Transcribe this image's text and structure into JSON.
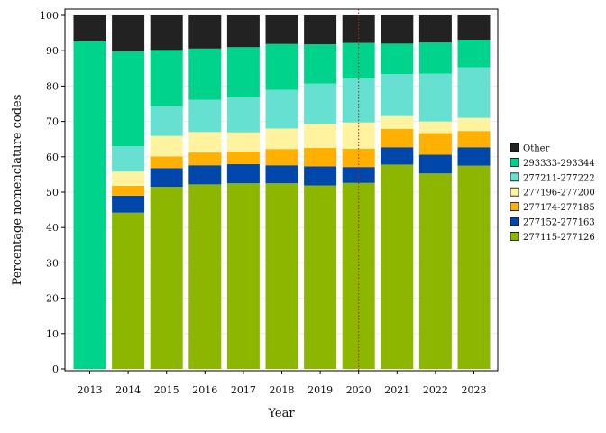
{
  "chart_data": {
    "type": "bar",
    "stacked": true,
    "xlabel": "Year",
    "ylabel": "Percentage nomenclature codes",
    "ylim": [
      0,
      100
    ],
    "yticks": [
      0,
      10,
      20,
      30,
      40,
      50,
      60,
      70,
      80,
      90,
      100
    ],
    "grid": true,
    "legend_position": "right",
    "categories": [
      "2013",
      "2014",
      "2015",
      "2016",
      "2017",
      "2018",
      "2019",
      "2020",
      "2021",
      "2022",
      "2023"
    ],
    "reference_line": {
      "x": "2020",
      "color": "#b22222",
      "style": "dotted"
    },
    "series": [
      {
        "name": "277115-277126",
        "color": "#8db600",
        "values": [
          0,
          44.2,
          51.5,
          52.2,
          52.5,
          52.5,
          51.9,
          52.6,
          57.8,
          55.3,
          57.5
        ]
      },
      {
        "name": "277152-277163",
        "color": "#0047ab",
        "values": [
          0,
          4.8,
          5.3,
          5.4,
          5.4,
          5.1,
          5.4,
          4.5,
          4.9,
          5.3,
          5.2
        ]
      },
      {
        "name": "277174-277185",
        "color": "#ffb000",
        "values": [
          0,
          2.8,
          3.3,
          3.6,
          3.6,
          4.6,
          5.2,
          5.2,
          5.2,
          6.1,
          4.6
        ]
      },
      {
        "name": "277196-277200",
        "color": "#fff3a0",
        "values": [
          0,
          4.0,
          5.8,
          5.8,
          5.4,
          5.8,
          6.8,
          7.4,
          3.6,
          3.3,
          3.7
        ]
      },
      {
        "name": "277211-277222",
        "color": "#66e0d0",
        "values": [
          0,
          7.2,
          8.4,
          9.1,
          9.9,
          10.9,
          11.4,
          12.4,
          11.9,
          13.5,
          14.3
        ]
      },
      {
        "name": "293333-293344",
        "color": "#00d48c",
        "values": [
          92.6,
          26.8,
          15.9,
          14.5,
          14.2,
          13.0,
          11.1,
          10.1,
          8.6,
          8.8,
          7.8
        ]
      },
      {
        "name": "Other",
        "color": "#222222",
        "values": [
          7.4,
          10.2,
          9.8,
          9.4,
          9.0,
          8.1,
          8.2,
          7.8,
          8.0,
          7.7,
          6.9
        ]
      }
    ]
  }
}
